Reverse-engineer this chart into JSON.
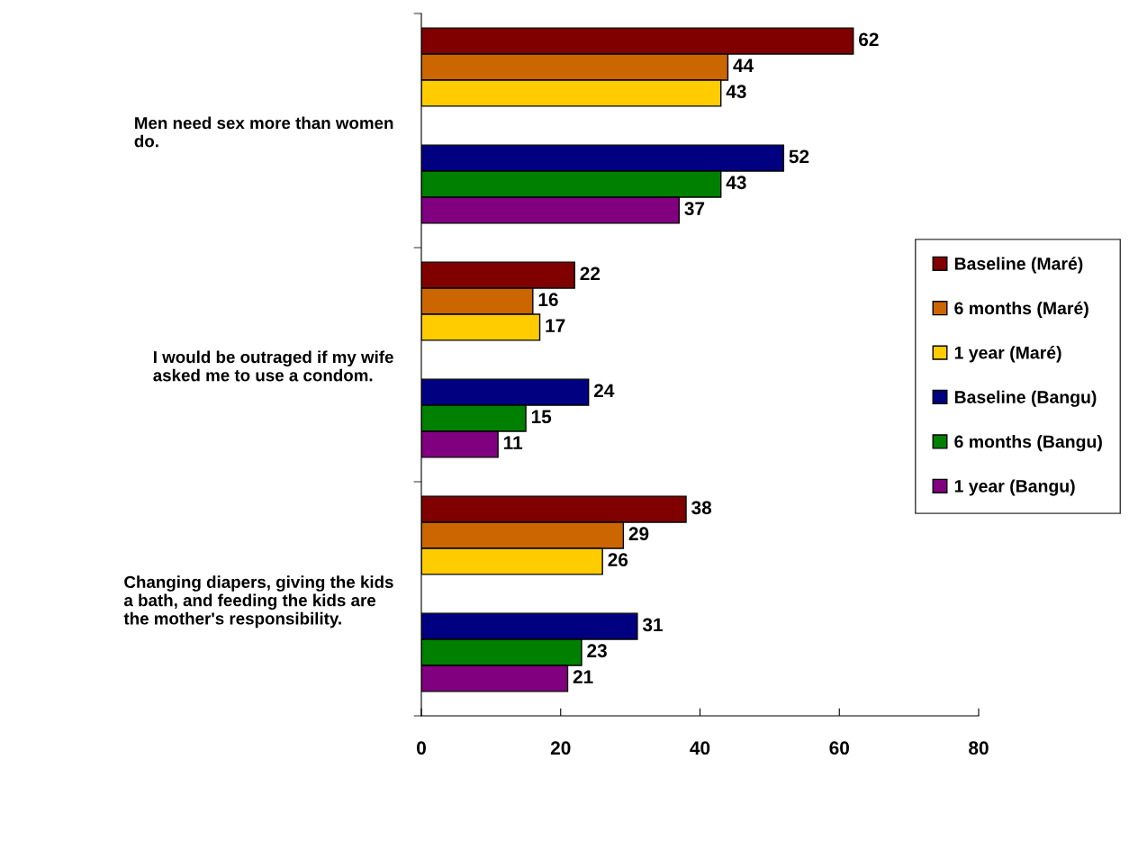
{
  "chart_data": {
    "type": "bar",
    "orientation": "horizontal",
    "categories": [
      "Men need sex more than women\ndo.",
      "I would be outraged if my wife\nasked me to use a condom.",
      "Changing diapers, giving the kids\na bath, and feeding the kids are\nthe mother's responsibility."
    ],
    "series": [
      {
        "name": "Baseline (Maré)",
        "color": "#800000",
        "values": [
          62,
          22,
          38
        ]
      },
      {
        "name": "6 months (Maré)",
        "color": "#cc6600",
        "values": [
          44,
          16,
          29
        ]
      },
      {
        "name": "1 year (Maré)",
        "color": "#ffcc00",
        "values": [
          43,
          17,
          26
        ]
      },
      {
        "name": "Baseline (Bangu)",
        "color": "#000080",
        "values": [
          52,
          24,
          31
        ]
      },
      {
        "name": "6 months (Bangu)",
        "color": "#008000",
        "values": [
          43,
          15,
          23
        ]
      },
      {
        "name": "1 year (Bangu)",
        "color": "#800080",
        "values": [
          37,
          11,
          21
        ]
      }
    ],
    "xlim": [
      0,
      80
    ],
    "xticks": [
      0,
      20,
      40,
      60,
      80
    ],
    "data_labels": true,
    "legend": "right",
    "grid": false
  }
}
